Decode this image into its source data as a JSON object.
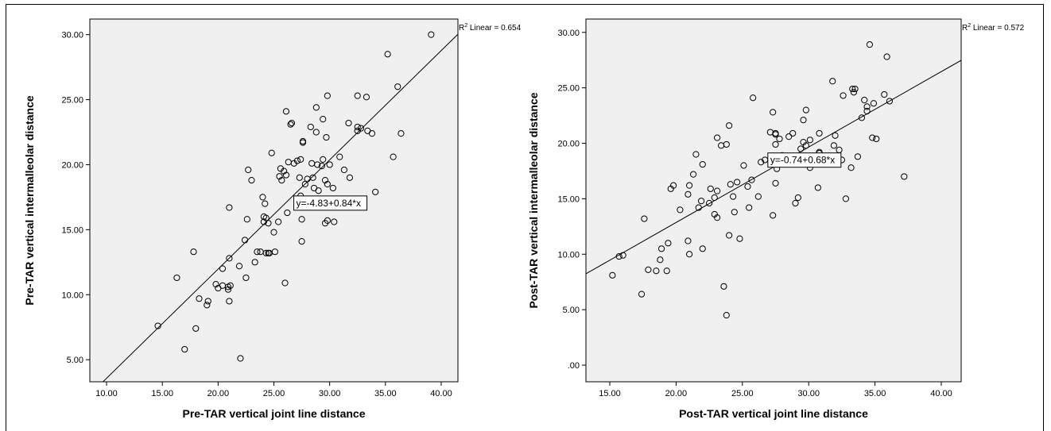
{
  "chart_data": [
    {
      "type": "scatter",
      "xlabel": "Pre-TAR vertical joint line distance",
      "ylabel": "Pre-TAR vertical intermalleolar distance",
      "xlim": [
        8.5,
        41.5
      ],
      "ylim": [
        3.3,
        31.2
      ],
      "xticks": [
        "10.00",
        "15.00",
        "20.00",
        "25.00",
        "30.00",
        "35.00",
        "40.00"
      ],
      "yticks": [
        "5.00",
        "10.00",
        "15.00",
        "20.00",
        "25.00",
        "30.00"
      ],
      "xtick_values": [
        10,
        15,
        20,
        25,
        30,
        35,
        40
      ],
      "ytick_values": [
        5,
        10,
        15,
        20,
        25,
        30
      ],
      "r2_label": "R",
      "r2_sup": "2",
      "r2_text": " Linear = 0.654",
      "equation": "y=-4.83+0.84*x",
      "equation_pos": [
        27.0,
        16.8
      ],
      "fit": {
        "intercept": -4.83,
        "slope": 0.84
      },
      "grid": false,
      "points": [
        [
          14.6,
          7.6
        ],
        [
          16.3,
          11.3
        ],
        [
          17.0,
          5.8
        ],
        [
          17.8,
          13.3
        ],
        [
          18.0,
          7.4
        ],
        [
          18.3,
          9.7
        ],
        [
          19.0,
          9.2
        ],
        [
          19.1,
          9.5
        ],
        [
          19.8,
          10.8
        ],
        [
          20.0,
          10.5
        ],
        [
          20.4,
          12.0
        ],
        [
          20.4,
          10.7
        ],
        [
          20.9,
          10.4
        ],
        [
          20.9,
          10.6
        ],
        [
          21.0,
          9.5
        ],
        [
          21.0,
          16.7
        ],
        [
          21.0,
          12.8
        ],
        [
          21.1,
          10.7
        ],
        [
          21.9,
          12.2
        ],
        [
          22.0,
          5.1
        ],
        [
          22.4,
          14.2
        ],
        [
          22.5,
          11.3
        ],
        [
          22.6,
          15.8
        ],
        [
          22.7,
          19.6
        ],
        [
          23.0,
          18.8
        ],
        [
          23.3,
          12.5
        ],
        [
          23.5,
          13.3
        ],
        [
          23.8,
          13.3
        ],
        [
          24.0,
          17.5
        ],
        [
          24.1,
          15.6
        ],
        [
          24.1,
          16.0
        ],
        [
          24.2,
          17.0
        ],
        [
          24.3,
          15.9
        ],
        [
          24.3,
          13.2
        ],
        [
          24.5,
          15.5
        ],
        [
          24.5,
          13.2
        ],
        [
          24.6,
          13.2
        ],
        [
          24.8,
          20.9
        ],
        [
          25.1,
          13.3
        ],
        [
          25.0,
          14.8
        ],
        [
          25.4,
          15.6
        ],
        [
          25.5,
          19.1
        ],
        [
          25.6,
          19.7
        ],
        [
          25.7,
          18.8
        ],
        [
          25.9,
          19.5
        ],
        [
          26.0,
          10.9
        ],
        [
          26.1,
          19.2
        ],
        [
          26.1,
          24.1
        ],
        [
          26.2,
          16.3
        ],
        [
          26.3,
          20.2
        ],
        [
          26.5,
          23.1
        ],
        [
          26.6,
          23.2
        ],
        [
          26.8,
          20.1
        ],
        [
          27.1,
          20.3
        ],
        [
          27.3,
          19.0
        ],
        [
          27.4,
          17.6
        ],
        [
          27.4,
          20.4
        ],
        [
          27.5,
          15.8
        ],
        [
          27.5,
          14.1
        ],
        [
          27.6,
          21.8
        ],
        [
          27.6,
          21.7
        ],
        [
          27.8,
          18.5
        ],
        [
          28.0,
          18.9
        ],
        [
          28.3,
          22.9
        ],
        [
          28.4,
          20.1
        ],
        [
          28.5,
          19.0
        ],
        [
          28.6,
          18.2
        ],
        [
          28.8,
          22.5
        ],
        [
          28.8,
          24.4
        ],
        [
          28.9,
          20.0
        ],
        [
          29.0,
          18.0
        ],
        [
          29.3,
          19.9
        ],
        [
          29.4,
          20.4
        ],
        [
          29.4,
          23.5
        ],
        [
          29.6,
          15.5
        ],
        [
          29.6,
          18.8
        ],
        [
          29.7,
          22.1
        ],
        [
          29.8,
          25.3
        ],
        [
          29.8,
          15.7
        ],
        [
          29.8,
          18.5
        ],
        [
          30.0,
          20.0
        ],
        [
          30.3,
          18.2
        ],
        [
          30.4,
          15.6
        ],
        [
          30.9,
          20.6
        ],
        [
          31.3,
          19.6
        ],
        [
          31.7,
          23.2
        ],
        [
          31.8,
          19.0
        ],
        [
          32.5,
          25.3
        ],
        [
          32.5,
          22.6
        ],
        [
          32.5,
          22.9
        ],
        [
          32.8,
          22.8
        ],
        [
          32.9,
          17.0
        ],
        [
          33.3,
          25.2
        ],
        [
          33.4,
          22.6
        ],
        [
          33.8,
          22.4
        ],
        [
          34.1,
          17.9
        ],
        [
          35.2,
          28.5
        ],
        [
          35.7,
          20.6
        ],
        [
          36.1,
          26.0
        ],
        [
          36.4,
          22.4
        ],
        [
          39.1,
          30.0
        ]
      ]
    },
    {
      "type": "scatter",
      "xlabel": "Post-TAR vertical joint line distance",
      "ylabel": "Post-TAR vertical intermalleolar distance",
      "xlim": [
        13.2,
        41.5
      ],
      "ylim": [
        -1.5,
        31.2
      ],
      "xticks": [
        "15.00",
        "20.00",
        "25.00",
        "30.00",
        "35.00",
        "40.00"
      ],
      "yticks": [
        ".00",
        "5.00",
        "10.00",
        "15.00",
        "20.00",
        "25.00",
        "30.00"
      ],
      "xtick_values": [
        15,
        20,
        25,
        30,
        35,
        40
      ],
      "ytick_values": [
        0,
        5,
        10,
        15,
        20,
        25,
        30
      ],
      "r2_label": "R",
      "r2_sup": "2",
      "r2_text": " Linear = 0.572",
      "equation": "y=-0.74+0.68*x",
      "equation_pos": [
        27.1,
        18.2
      ],
      "fit": {
        "intercept": -0.74,
        "slope": 0.68
      },
      "grid": false,
      "points": [
        [
          15.2,
          8.1
        ],
        [
          15.7,
          9.8
        ],
        [
          16.0,
          9.9
        ],
        [
          17.4,
          6.4
        ],
        [
          17.6,
          13.2
        ],
        [
          17.9,
          8.6
        ],
        [
          18.5,
          8.5
        ],
        [
          18.8,
          9.5
        ],
        [
          18.9,
          10.5
        ],
        [
          19.3,
          8.5
        ],
        [
          19.4,
          11.0
        ],
        [
          19.6,
          15.9
        ],
        [
          19.8,
          16.2
        ],
        [
          20.3,
          14.0
        ],
        [
          20.9,
          11.2
        ],
        [
          20.9,
          15.4
        ],
        [
          21.0,
          16.2
        ],
        [
          21.0,
          10.0
        ],
        [
          21.3,
          17.2
        ],
        [
          21.5,
          19.0
        ],
        [
          21.7,
          14.2
        ],
        [
          21.9,
          14.8
        ],
        [
          22.0,
          18.1
        ],
        [
          22.0,
          10.5
        ],
        [
          22.5,
          14.6
        ],
        [
          22.6,
          15.9
        ],
        [
          22.9,
          15.1
        ],
        [
          22.9,
          13.6
        ],
        [
          23.1,
          13.3
        ],
        [
          23.1,
          15.7
        ],
        [
          23.1,
          20.5
        ],
        [
          23.4,
          19.8
        ],
        [
          23.6,
          7.1
        ],
        [
          23.8,
          4.5
        ],
        [
          23.8,
          19.9
        ],
        [
          24.0,
          21.6
        ],
        [
          24.0,
          11.7
        ],
        [
          24.1,
          16.3
        ],
        [
          24.3,
          15.2
        ],
        [
          24.4,
          13.8
        ],
        [
          24.6,
          16.5
        ],
        [
          24.8,
          11.4
        ],
        [
          25.1,
          18.0
        ],
        [
          25.4,
          16.1
        ],
        [
          25.5,
          14.2
        ],
        [
          25.7,
          16.7
        ],
        [
          25.8,
          24.1
        ],
        [
          26.2,
          15.2
        ],
        [
          26.4,
          18.3
        ],
        [
          26.7,
          18.5
        ],
        [
          27.1,
          21.0
        ],
        [
          27.3,
          22.8
        ],
        [
          27.3,
          13.5
        ],
        [
          27.5,
          16.4
        ],
        [
          27.5,
          19.9
        ],
        [
          27.5,
          20.8
        ],
        [
          27.5,
          20.9
        ],
        [
          27.6,
          17.7
        ],
        [
          27.8,
          20.4
        ],
        [
          28.0,
          18.9
        ],
        [
          28.5,
          20.6
        ],
        [
          28.8,
          20.9
        ],
        [
          29.0,
          14.6
        ],
        [
          29.2,
          15.1
        ],
        [
          29.4,
          19.5
        ],
        [
          29.6,
          22.1
        ],
        [
          29.6,
          20.1
        ],
        [
          29.8,
          23.0
        ],
        [
          29.8,
          19.8
        ],
        [
          30.1,
          17.8
        ],
        [
          30.1,
          20.3
        ],
        [
          30.7,
          16.0
        ],
        [
          30.8,
          19.2
        ],
        [
          30.8,
          20.9
        ],
        [
          30.8,
          19.1
        ],
        [
          31.8,
          25.6
        ],
        [
          31.9,
          19.8
        ],
        [
          32.0,
          20.7
        ],
        [
          32.3,
          19.4
        ],
        [
          32.5,
          18.5
        ],
        [
          32.6,
          24.3
        ],
        [
          32.8,
          15.0
        ],
        [
          33.2,
          17.8
        ],
        [
          33.3,
          24.9
        ],
        [
          33.4,
          24.6
        ],
        [
          33.5,
          24.9
        ],
        [
          33.7,
          18.8
        ],
        [
          34.0,
          22.3
        ],
        [
          34.4,
          22.9
        ],
        [
          34.4,
          23.3
        ],
        [
          34.6,
          28.9
        ],
        [
          34.8,
          20.5
        ],
        [
          34.9,
          23.6
        ],
        [
          35.1,
          20.4
        ],
        [
          35.7,
          24.4
        ],
        [
          35.9,
          27.8
        ],
        [
          36.1,
          23.8
        ],
        [
          37.2,
          17.0
        ],
        [
          34.2,
          23.9
        ],
        [
          28.5,
          18.1
        ]
      ]
    }
  ]
}
